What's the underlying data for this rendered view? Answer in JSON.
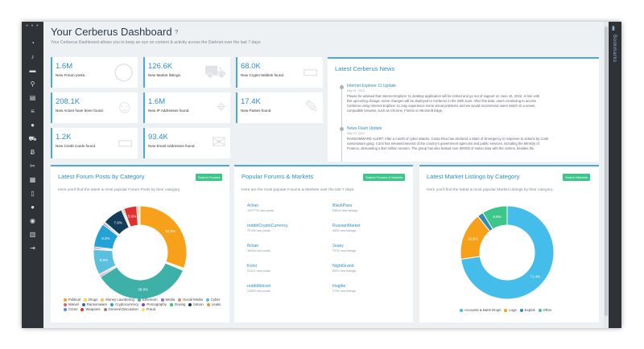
{
  "header": {
    "title": "Your Cerberus Dashboard",
    "help": "?",
    "subtitle": "Your Cerberus Dashboard allows you to keep an eye on content & activity across the Darknet over the last 7 days"
  },
  "sidebar": {
    "dots": "• • •",
    "icons": [
      "dashboard-icon",
      "bell-icon",
      "folder-icon",
      "search-icon",
      "book-icon",
      "list-icon",
      "chat-icon",
      "cart-icon",
      "bitcoin-icon",
      "tools-icon",
      "database-icon",
      "phone-icon",
      "user-icon",
      "comment-icon",
      "notes-icon",
      "logout-icon"
    ]
  },
  "rightbar": {
    "label": "Bookmarks"
  },
  "stats": [
    {
      "value": "1.6M",
      "label": "New Forum posts.",
      "icon": "chat-bubble-icon"
    },
    {
      "value": "126.6K",
      "label": "New Market listings.",
      "icon": "cart-icon"
    },
    {
      "value": "68.0K",
      "label": "New Crypto Wallets found.",
      "icon": "wallet-icon"
    },
    {
      "value": "208.1K",
      "label": "New Actors have been found.",
      "icon": "users-icon"
    },
    {
      "value": "1.6M",
      "label": "New IP Addresses found.",
      "icon": "map-pin-icon"
    },
    {
      "value": "17.4K",
      "label": "New Pastes found.",
      "icon": "paste-icon"
    },
    {
      "value": "1.2K",
      "label": "New Credit Cards found.",
      "icon": "credit-card-icon"
    },
    {
      "value": "93.4K",
      "label": "New Email Addresses found.",
      "icon": "envelope-icon"
    }
  ],
  "news": {
    "title": "Latest Cerberus News",
    "items": [
      {
        "title": "Internet Explorer 11 Update",
        "date": "May 31, 2022",
        "body": [
          "Please be advised that Internet Explorer 11 desktop application will be retired and go out of support on June 15, 2022. In line with",
          "this upcoming change, some changes will be deployed to Cerberus in the 28th June. After this date, users continuing to access",
          "Cerberus using Internet Explorer 11 may experience some visual problems and we would recommend users switch to a newer,",
          "compatible browser, such as Chrome, Firefox or Microsoft Edge."
        ]
      },
      {
        "title": "News Flash Update",
        "date": "May 23, 2022",
        "body": [
          "RANSOMWARE ALERT: After a month of cyber attacks, Costa Rica has declared a State of Emergency in response to actions by Conti",
          "ransomware gang. Conti has released several of the country's government agencies and public services, including the Ministry of",
          "Finance, demanding a $10 million ransom. The group has also leaked over 600GB of stolen data with the victims, besides the"
        ]
      }
    ]
  },
  "forum_card": {
    "title": "Latest Forum Posts by Category",
    "button": "Search Forums",
    "desc": "Here you'll find the latest & most popular Forum Posts by their category."
  },
  "forums_markets": {
    "title": "Popular Forums & Markets",
    "button": "Search Forums & Markets",
    "desc": "Here are the most popular Forums & Markets over the last 7 days.",
    "left": [
      {
        "name": "4chan",
        "count": "1037776 new posts."
      },
      {
        "name": "reddit/CryptoCurrency",
        "count": "75766 new posts."
      },
      {
        "name": "8chan",
        "count": "36006 new posts."
      },
      {
        "name": "Kotor",
        "count": "21321 new posts."
      },
      {
        "name": "reddit/bitcoin",
        "count": "13359 new posts."
      }
    ],
    "right": [
      {
        "name": "BlackPass",
        "count": "83816 new listings."
      },
      {
        "name": "RussianMarket",
        "count": "9925 new listings."
      },
      {
        "name": "2easy",
        "count": "7376 new listings."
      },
      {
        "name": "NightGrand",
        "count": "5029 new listings."
      },
      {
        "name": "Hugdie",
        "count": "2799 new listings."
      }
    ]
  },
  "market_card": {
    "title": "Latest Market Listings by Category",
    "button": "Search Markets",
    "desc": "Here you'll find the latest & most popular Market Listings by their category."
  },
  "chart_data": [
    {
      "type": "pie",
      "categories": [
        "Political",
        "Drugs",
        "Money Laundering",
        "Ethereum",
        "Media",
        "Social Media",
        "Cyber",
        "Marvel",
        "Ransomware",
        "Cryptocurrency",
        "Pornography",
        "Doxing",
        "bitcoin",
        "Leaks",
        "Crime",
        "Weapons",
        "General Discussion",
        "Fraud"
      ],
      "values": [
        33.9,
        0.5,
        0.4,
        38.8,
        0.6,
        0.5,
        9.9,
        0.5,
        0.5,
        9.3,
        0.6,
        0.5,
        7.9,
        0.5,
        0.5,
        5.0,
        0.6,
        0.7
      ],
      "data_labels": [
        "33.9%",
        "",
        "",
        "38.8%",
        "",
        "",
        "9.9%",
        "",
        "",
        "9.3%",
        "",
        "",
        "7.9%",
        "",
        "",
        "5.0%",
        "",
        ""
      ],
      "colors": [
        "#f7a11a",
        "#e8d84a",
        "#f4c542",
        "#3db0a8",
        "#9c6bd3",
        "#f57c7c",
        "#5bc0de",
        "#e65c6c",
        "#2b6cb0",
        "#23a2d6",
        "#8e44ad",
        "#2ecc71",
        "#143d59",
        "#d0a030",
        "#4a90d9",
        "#e0302c",
        "#7f8c8d",
        "#f1e05a"
      ],
      "legend_position": "bottom"
    },
    {
      "type": "pie",
      "categories": [
        "Accounts & Bank Drops",
        "Logs",
        "Exploit",
        "Other"
      ],
      "values": [
        71.4,
        16.2,
        2.0,
        8.6
      ],
      "data_labels": [
        "71.4%",
        "16.2%",
        "",
        "8.6%"
      ],
      "colors": [
        "#45bdeb",
        "#f7a11a",
        "#2f8bb3",
        "#3cc68a"
      ],
      "legend_position": "bottom"
    }
  ]
}
